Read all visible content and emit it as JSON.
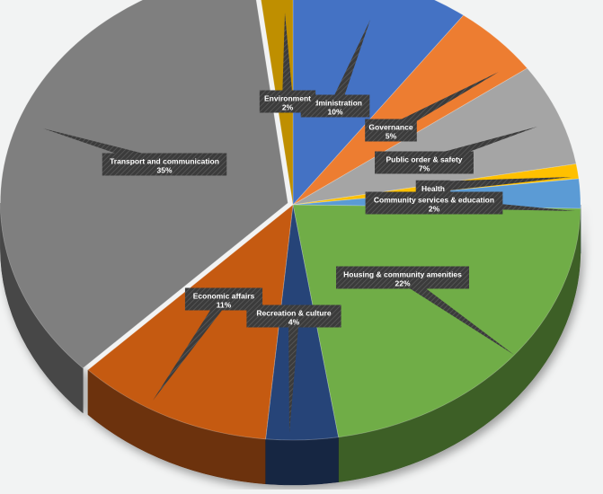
{
  "chart_data": {
    "type": "pie",
    "title": "",
    "style": "3d-exploded-pie",
    "slices": [
      {
        "label": "Administration",
        "pct_label": "10%",
        "value": 10,
        "color": "#4472c4"
      },
      {
        "label": "Governance",
        "pct_label": "5%",
        "value": 5,
        "color": "#ed7d31"
      },
      {
        "label": "Public order & safety",
        "pct_label": "7%",
        "value": 7,
        "color": "#a5a5a5"
      },
      {
        "label": "Health",
        "pct_label": "",
        "value": 1,
        "color": "#ffc000"
      },
      {
        "label": "Community services & education",
        "pct_label": "2%",
        "value": 2,
        "color": "#5b9bd5"
      },
      {
        "label": "Housing & community amenities",
        "pct_label": "22%",
        "value": 22,
        "color": "#70ad47"
      },
      {
        "label": "Recreation & culture",
        "pct_label": "4%",
        "value": 4,
        "color": "#264478"
      },
      {
        "label": "Economic affairs",
        "pct_label": "11%",
        "value": 11,
        "color": "#c55a11"
      },
      {
        "label": "Transport and communication",
        "pct_label": "35%",
        "value": 35,
        "color": "#7f7f7f"
      },
      {
        "label": "Environment",
        "pct_label": "2%",
        "value": 2,
        "color": "#bf8f00"
      }
    ]
  }
}
